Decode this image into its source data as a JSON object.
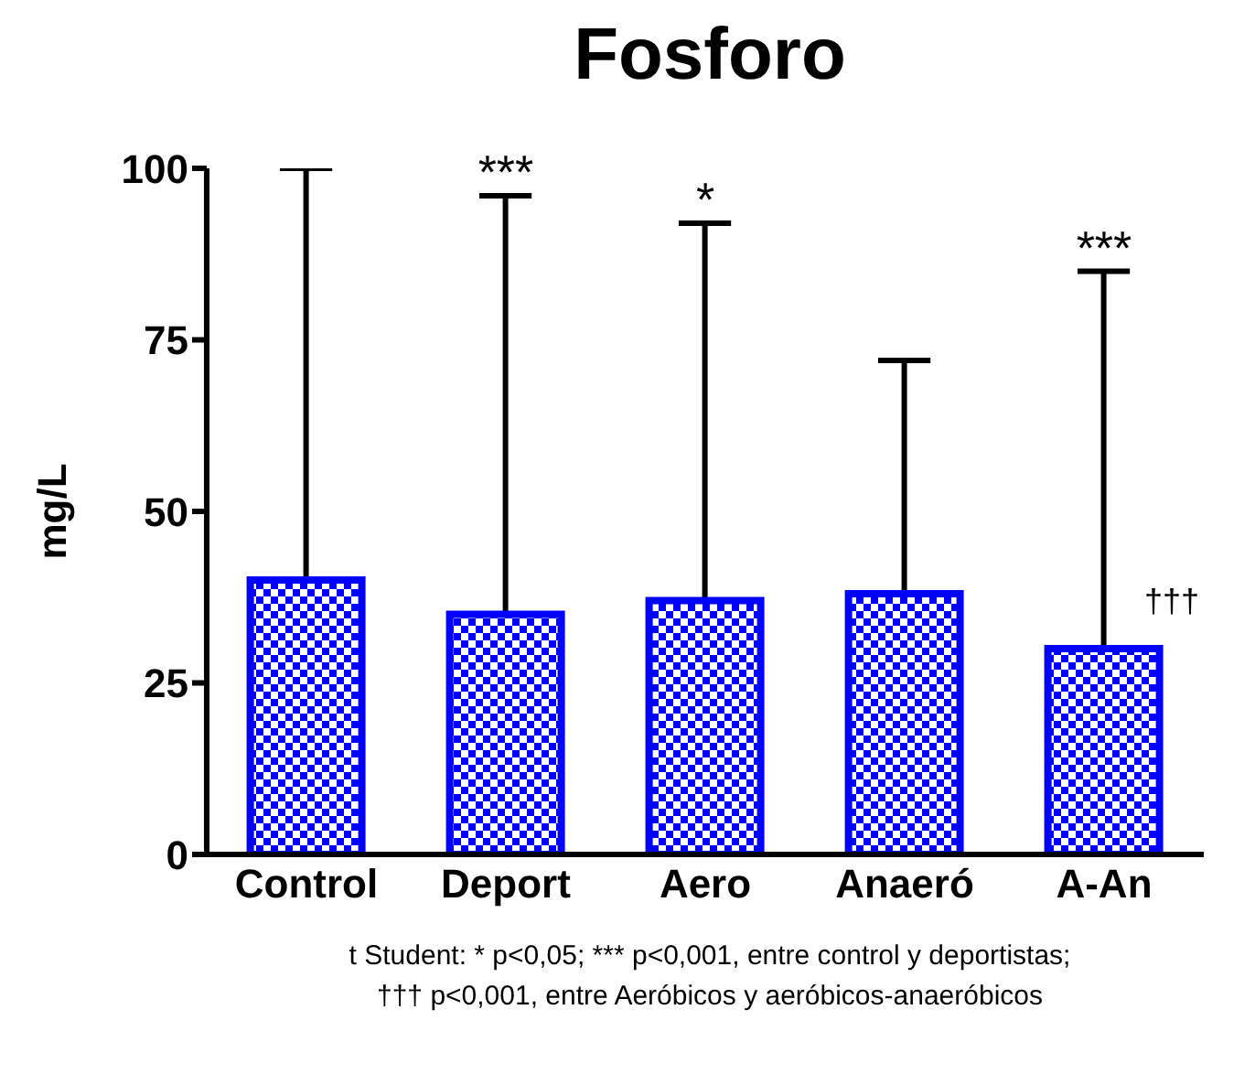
{
  "chart_data": {
    "type": "bar",
    "title": "Fosforo",
    "ylabel": "mg/L",
    "categories": [
      "Control",
      "Deport",
      "Aero",
      "Anaeró",
      "A-An"
    ],
    "values": [
      40,
      35,
      37,
      38,
      30
    ],
    "errors": [
      [
        40,
        100
      ],
      [
        35,
        96
      ],
      [
        37,
        92
      ],
      [
        38,
        72
      ],
      [
        30,
        85
      ]
    ],
    "color": "#0000ff",
    "ylim": [
      0,
      100
    ],
    "yticks": [
      0,
      25,
      50,
      75,
      100
    ],
    "grid": false,
    "legend": false,
    "annotations": [
      {
        "text": "***",
        "x": "Deport",
        "y": 96
      },
      {
        "text": "*",
        "x": "Aero",
        "y": 92
      },
      {
        "text": "***",
        "x": "A-An",
        "y": 85
      },
      {
        "text": "†††",
        "x": "A-An",
        "y": 37
      },
      "t Student: * p<0,05; *** p<0,001, entre control y deportistas;",
      "††† p<0,001, entre Aeróbicos y aeróbicos-anaeróbicos"
    ]
  }
}
